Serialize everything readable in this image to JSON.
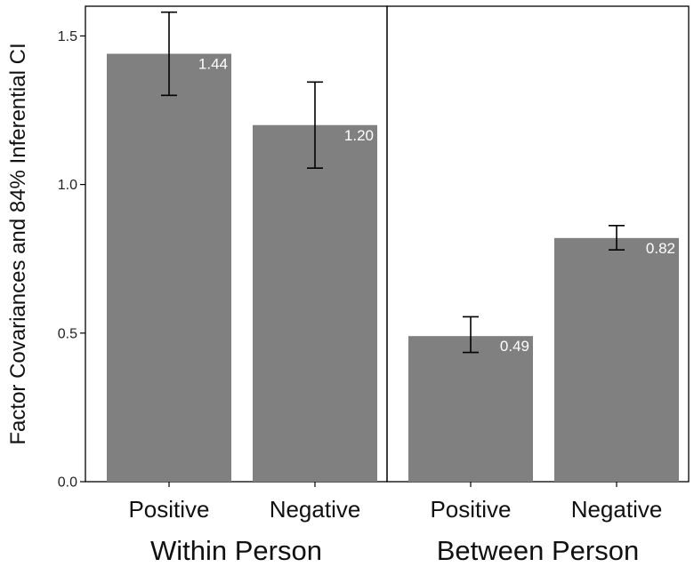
{
  "chart_data": {
    "type": "bar",
    "ylabel": "Factor Covariances and 84% Inferential CI",
    "ylim": [
      0,
      1.6
    ],
    "yticks": [
      0.0,
      0.5,
      1.0,
      1.5
    ],
    "ytick_labels": [
      "0.0",
      "0.5",
      "1.0",
      "1.5"
    ],
    "grid": false,
    "colors": {
      "bar": "#808080",
      "errorbar": "#000000",
      "data_label": "#ffffff"
    },
    "panels": [
      {
        "group": "Within Person",
        "categories": [
          "Positive",
          "Negative"
        ],
        "values": [
          1.44,
          1.2
        ],
        "value_labels": [
          "1.44",
          "1.20"
        ],
        "ci_lower": [
          1.3,
          1.055
        ],
        "ci_upper": [
          1.58,
          1.345
        ]
      },
      {
        "group": "Between Person",
        "categories": [
          "Positive",
          "Negative"
        ],
        "values": [
          0.49,
          0.82
        ],
        "value_labels": [
          "0.49",
          "0.82"
        ],
        "ci_lower": [
          0.435,
          0.78
        ],
        "ci_upper": [
          0.555,
          0.862
        ]
      }
    ]
  }
}
